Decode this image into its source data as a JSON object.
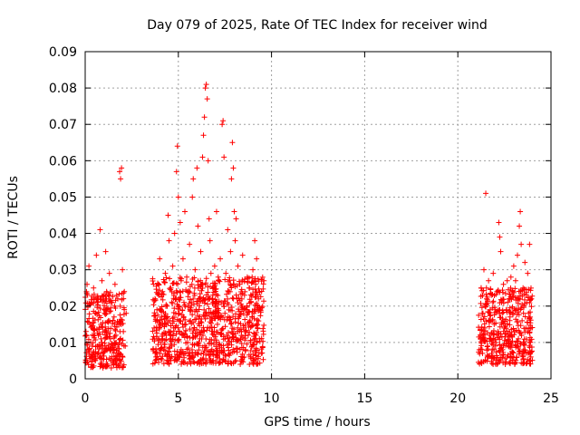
{
  "chart_data": {
    "type": "scatter",
    "title": "Day 079 of 2025, Rate Of TEC Index for receiver wind",
    "xlabel": "GPS time / hours",
    "ylabel": "ROTI / TECUs",
    "xlim": [
      0,
      25
    ],
    "ylim": [
      0,
      0.09
    ],
    "x_ticks": [
      0,
      5,
      10,
      15,
      20,
      25
    ],
    "x_tick_labels": [
      "0",
      "5",
      "10",
      "15",
      "20",
      "25"
    ],
    "y_ticks": [
      0,
      0.01,
      0.02,
      0.03,
      0.04,
      0.05,
      0.06,
      0.07,
      0.08,
      0.09
    ],
    "y_tick_labels": [
      "0",
      "0.01",
      "0.02",
      "0.03",
      "0.04",
      "0.05",
      "0.06",
      "0.07",
      "0.08",
      "0.09"
    ],
    "grid": true,
    "marker": "+",
    "color": "#ff0000",
    "series": [
      {
        "values": [
          [
            0.05,
            0.012
          ],
          [
            0.1,
            0.026
          ],
          [
            0.15,
            0.008
          ],
          [
            0.2,
            0.031
          ],
          [
            0.25,
            0.015
          ],
          [
            0.3,
            0.01
          ],
          [
            0.35,
            0.021
          ],
          [
            0.4,
            0.006
          ],
          [
            0.45,
            0.025
          ],
          [
            0.5,
            0.012
          ],
          [
            0.55,
            0.018
          ],
          [
            0.6,
            0.034
          ],
          [
            0.65,
            0.009
          ],
          [
            0.7,
            0.022
          ],
          [
            0.75,
            0.014
          ],
          [
            0.8,
            0.041
          ],
          [
            0.85,
            0.011
          ],
          [
            0.9,
            0.027
          ],
          [
            0.95,
            0.007
          ],
          [
            1.0,
            0.019
          ],
          [
            1.05,
            0.013
          ],
          [
            1.1,
            0.035
          ],
          [
            1.15,
            0.024
          ],
          [
            1.2,
            0.004
          ],
          [
            1.25,
            0.016
          ],
          [
            1.3,
            0.029
          ],
          [
            1.35,
            0.011
          ],
          [
            1.4,
            0.003
          ],
          [
            1.45,
            0.021
          ],
          [
            1.5,
            0.009
          ],
          [
            1.55,
            0.017
          ],
          [
            1.6,
            0.026
          ],
          [
            1.65,
            0.012
          ],
          [
            1.7,
            0.006
          ],
          [
            1.75,
            0.022
          ],
          [
            1.8,
            0.015
          ],
          [
            1.85,
            0.057
          ],
          [
            1.9,
            0.055
          ],
          [
            1.95,
            0.058
          ],
          [
            2.0,
            0.03
          ],
          [
            2.05,
            0.013
          ],
          [
            2.1,
            0.024
          ],
          [
            2.15,
            0.009
          ],
          [
            2.2,
            0.018
          ],
          [
            3.7,
            0.014
          ],
          [
            3.75,
            0.022
          ],
          [
            3.8,
            0.006
          ],
          [
            3.85,
            0.019
          ],
          [
            3.9,
            0.011
          ],
          [
            3.95,
            0.026
          ],
          [
            4.0,
            0.033
          ],
          [
            4.05,
            0.01
          ],
          [
            4.1,
            0.017
          ],
          [
            4.15,
            0.024
          ],
          [
            4.2,
            0.008
          ],
          [
            4.25,
            0.015
          ],
          [
            4.3,
            0.029
          ],
          [
            4.35,
            0.012
          ],
          [
            4.4,
            0.02
          ],
          [
            4.45,
            0.045
          ],
          [
            4.5,
            0.038
          ],
          [
            4.55,
            0.016
          ],
          [
            4.6,
            0.025
          ],
          [
            4.65,
            0.009
          ],
          [
            4.7,
            0.031
          ],
          [
            4.75,
            0.014
          ],
          [
            4.8,
            0.04
          ],
          [
            4.85,
            0.022
          ],
          [
            4.9,
            0.057
          ],
          [
            4.95,
            0.064
          ],
          [
            5.0,
            0.05
          ],
          [
            5.05,
            0.018
          ],
          [
            5.1,
            0.043
          ],
          [
            5.15,
            0.027
          ],
          [
            5.2,
            0.012
          ],
          [
            5.25,
            0.033
          ],
          [
            5.3,
            0.021
          ],
          [
            5.35,
            0.046
          ],
          [
            5.4,
            0.015
          ],
          [
            5.45,
            0.028
          ],
          [
            5.5,
            0.01
          ],
          [
            5.55,
            0.024
          ],
          [
            5.6,
            0.037
          ],
          [
            5.65,
            0.016
          ],
          [
            5.7,
            0.021
          ],
          [
            5.75,
            0.05
          ],
          [
            5.8,
            0.055
          ],
          [
            5.85,
            0.014
          ],
          [
            5.9,
            0.03
          ],
          [
            5.95,
            0.019
          ],
          [
            6.0,
            0.058
          ],
          [
            6.05,
            0.042
          ],
          [
            6.1,
            0.022
          ],
          [
            6.15,
            0.011
          ],
          [
            6.2,
            0.035
          ],
          [
            6.25,
            0.026
          ],
          [
            6.3,
            0.061
          ],
          [
            6.35,
            0.067
          ],
          [
            6.4,
            0.072
          ],
          [
            6.45,
            0.08
          ],
          [
            6.5,
            0.081
          ],
          [
            6.55,
            0.077
          ],
          [
            6.6,
            0.06
          ],
          [
            6.65,
            0.044
          ],
          [
            6.7,
            0.038
          ],
          [
            6.75,
            0.029
          ],
          [
            6.8,
            0.017
          ],
          [
            6.85,
            0.023
          ],
          [
            6.9,
            0.012
          ],
          [
            6.95,
            0.031
          ],
          [
            7.0,
            0.02
          ],
          [
            7.05,
            0.046
          ],
          [
            7.1,
            0.015
          ],
          [
            7.15,
            0.027
          ],
          [
            7.2,
            0.009
          ],
          [
            7.25,
            0.033
          ],
          [
            7.3,
            0.021
          ],
          [
            7.35,
            0.07
          ],
          [
            7.4,
            0.071
          ],
          [
            7.45,
            0.061
          ],
          [
            7.5,
            0.018
          ],
          [
            7.55,
            0.029
          ],
          [
            7.6,
            0.012
          ],
          [
            7.65,
            0.041
          ],
          [
            7.7,
            0.024
          ],
          [
            7.75,
            0.016
          ],
          [
            7.8,
            0.035
          ],
          [
            7.85,
            0.055
          ],
          [
            7.9,
            0.065
          ],
          [
            7.95,
            0.058
          ],
          [
            8.0,
            0.046
          ],
          [
            8.05,
            0.038
          ],
          [
            8.1,
            0.044
          ],
          [
            8.15,
            0.022
          ],
          [
            8.2,
            0.031
          ],
          [
            8.25,
            0.017
          ],
          [
            8.3,
            0.026
          ],
          [
            8.35,
            0.011
          ],
          [
            8.4,
            0.02
          ],
          [
            8.45,
            0.034
          ],
          [
            8.5,
            0.014
          ],
          [
            8.55,
            0.023
          ],
          [
            8.6,
            0.008
          ],
          [
            8.65,
            0.019
          ],
          [
            8.7,
            0.028
          ],
          [
            8.75,
            0.012
          ],
          [
            8.8,
            0.025
          ],
          [
            8.85,
            0.016
          ],
          [
            8.9,
            0.021
          ],
          [
            8.95,
            0.009
          ],
          [
            9.0,
            0.03
          ],
          [
            9.05,
            0.018
          ],
          [
            9.1,
            0.038
          ],
          [
            9.15,
            0.026
          ],
          [
            9.2,
            0.033
          ],
          [
            9.25,
            0.014
          ],
          [
            9.3,
            0.022
          ],
          [
            9.35,
            0.011
          ],
          [
            9.4,
            0.019
          ],
          [
            9.45,
            0.007
          ],
          [
            21.2,
            0.012
          ],
          [
            21.25,
            0.025
          ],
          [
            21.3,
            0.008
          ],
          [
            21.35,
            0.018
          ],
          [
            21.4,
            0.03
          ],
          [
            21.45,
            0.014
          ],
          [
            21.5,
            0.051
          ],
          [
            21.55,
            0.022
          ],
          [
            21.6,
            0.009
          ],
          [
            21.65,
            0.027
          ],
          [
            21.7,
            0.016
          ],
          [
            21.75,
            0.011
          ],
          [
            21.8,
            0.023
          ],
          [
            21.85,
            0.006
          ],
          [
            21.9,
            0.029
          ],
          [
            21.95,
            0.015
          ],
          [
            22.0,
            0.019
          ],
          [
            22.05,
            0.01
          ],
          [
            22.1,
            0.024
          ],
          [
            22.15,
            0.013
          ],
          [
            22.2,
            0.043
          ],
          [
            22.25,
            0.039
          ],
          [
            22.3,
            0.035
          ],
          [
            22.35,
            0.021
          ],
          [
            22.4,
            0.008
          ],
          [
            22.45,
            0.026
          ],
          [
            22.5,
            0.014
          ],
          [
            22.55,
            0.004
          ],
          [
            22.6,
            0.019
          ],
          [
            22.65,
            0.027
          ],
          [
            22.7,
            0.012
          ],
          [
            22.75,
            0.022
          ],
          [
            22.8,
            0.017
          ],
          [
            22.85,
            0.028
          ],
          [
            22.9,
            0.009
          ],
          [
            22.95,
            0.024
          ],
          [
            23.0,
            0.031
          ],
          [
            23.05,
            0.013
          ],
          [
            23.1,
            0.027
          ],
          [
            23.15,
            0.019
          ],
          [
            23.2,
            0.034
          ],
          [
            23.25,
            0.011
          ],
          [
            23.3,
            0.042
          ],
          [
            23.35,
            0.046
          ],
          [
            23.4,
            0.037
          ],
          [
            23.45,
            0.016
          ],
          [
            23.5,
            0.025
          ],
          [
            23.55,
            0.008
          ],
          [
            23.6,
            0.032
          ],
          [
            23.65,
            0.014
          ],
          [
            23.7,
            0.021
          ],
          [
            23.75,
            0.029
          ],
          [
            23.8,
            0.018
          ],
          [
            23.85,
            0.037
          ],
          [
            23.9,
            0.01
          ],
          [
            23.95,
            0.022
          ]
        ]
      }
    ],
    "dense_bands": [
      {
        "x": [
          0.0,
          2.1
        ],
        "y": [
          0.003,
          0.024
        ]
      },
      {
        "x": [
          3.6,
          9.6
        ],
        "y": [
          0.004,
          0.028
        ]
      },
      {
        "x": [
          21.1,
          24.0
        ],
        "y": [
          0.004,
          0.025
        ]
      }
    ]
  }
}
